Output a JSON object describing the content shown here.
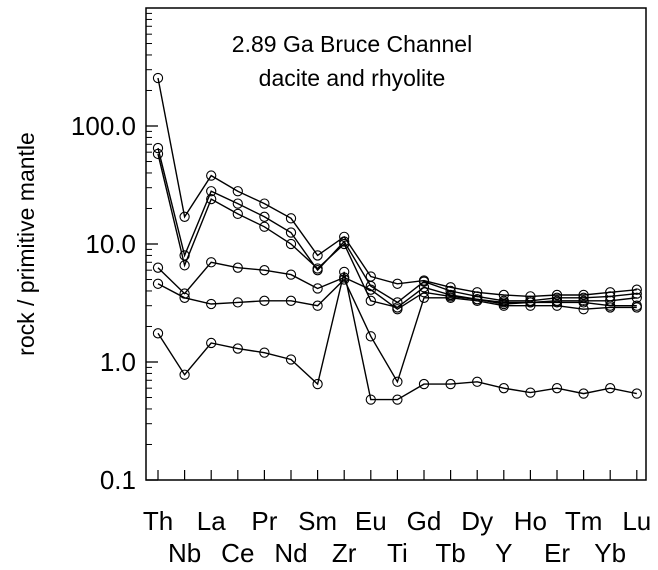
{
  "chart_data": {
    "type": "line",
    "title": "2.89 Ga Bruce Channel",
    "subtitle": "dacite and rhyolite",
    "xlabel": "",
    "ylabel": "rock / primitive mantle",
    "y_scale": "log",
    "ylim": [
      0.1,
      1000
    ],
    "y_ticks": [
      "0.1",
      "1.0",
      "10.0",
      "100.0"
    ],
    "categories": [
      "Th",
      "Nb",
      "La",
      "Ce",
      "Pr",
      "Nd",
      "Sm",
      "Zr",
      "Eu",
      "Ti",
      "Gd",
      "Tb",
      "Dy",
      "Y",
      "Ho",
      "Er",
      "Tm",
      "Yb",
      "Lu"
    ],
    "grid": false,
    "legend": "none",
    "series": [
      {
        "values": [
          255,
          17,
          38,
          28,
          22,
          16.5,
          8.0,
          11.5,
          5.3,
          4.6,
          4.9,
          4.3,
          3.9,
          3.7,
          3.6,
          3.7,
          3.7,
          3.9,
          4.1
        ]
      },
      {
        "values": [
          65,
          8.0,
          28,
          22,
          17,
          12.5,
          6.0,
          10.5,
          4.4,
          3.2,
          4.8,
          4.0,
          3.6,
          3.3,
          3.3,
          3.5,
          3.5,
          3.6,
          3.8
        ]
      },
      {
        "values": [
          58,
          6.6,
          24,
          18,
          14,
          10.0,
          6.2,
          10.0,
          3.3,
          2.9,
          4.3,
          3.7,
          3.4,
          3.2,
          3.2,
          3.3,
          3.3,
          3.3,
          3.5
        ]
      },
      {
        "values": [
          6.3,
          3.8,
          7.0,
          6.3,
          6.0,
          5.5,
          4.2,
          5.2,
          4.1,
          2.8,
          3.9,
          3.6,
          3.4,
          3.1,
          3.2,
          3.2,
          3.2,
          3.0,
          3.0
        ]
      },
      {
        "values": [
          4.6,
          3.5,
          3.1,
          3.2,
          3.3,
          3.3,
          3.0,
          5.0,
          1.65,
          0.68,
          3.5,
          3.5,
          3.3,
          3.0,
          3.0,
          3.0,
          2.8,
          2.9,
          2.9
        ]
      },
      {
        "values": [
          1.75,
          0.78,
          1.45,
          1.3,
          1.2,
          1.05,
          0.65,
          5.8,
          0.48,
          0.48,
          0.65,
          0.65,
          0.68,
          0.6,
          0.55,
          0.6,
          0.54,
          0.6,
          0.54
        ]
      }
    ]
  }
}
